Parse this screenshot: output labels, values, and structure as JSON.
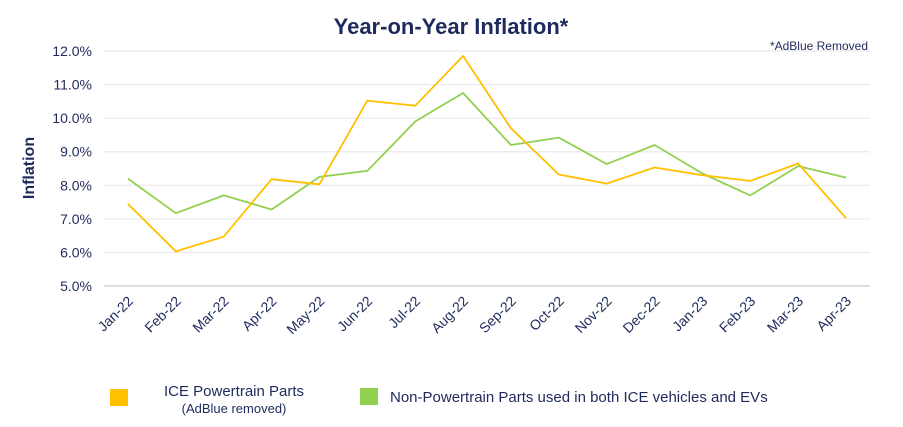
{
  "chart_data": {
    "type": "line",
    "title": "Year-on-Year Inflation*",
    "note": "*AdBlue Removed",
    "ylabel": "Inflation",
    "xlabel": "",
    "ylim": [
      5.0,
      12.0
    ],
    "yticks": [
      "5.0%",
      "6.0%",
      "7.0%",
      "8.0%",
      "9.0%",
      "10.0%",
      "11.0%",
      "12.0%"
    ],
    "grid": true,
    "legend_position": "bottom",
    "categories": [
      "Jan-22",
      "Feb-22",
      "Mar-22",
      "Apr-22",
      "May-22",
      "Jun-22",
      "Jul-22",
      "Aug-22",
      "Sep-22",
      "Oct-22",
      "Nov-22",
      "Dec-22",
      "Jan-23",
      "Feb-23",
      "Mar-23",
      "Apr-23"
    ],
    "series": [
      {
        "name": "ICE Powertrain Parts",
        "subname": "(AdBlue removed)",
        "color": "#ffc000",
        "values": [
          7.45,
          6.03,
          6.47,
          8.18,
          8.03,
          10.52,
          10.37,
          11.85,
          9.7,
          8.32,
          8.05,
          8.53,
          8.3,
          8.13,
          8.65,
          7.02
        ]
      },
      {
        "name": "Non-Powertrain Parts used in both ICE vehicles and EVs",
        "color": "#92d050",
        "values": [
          8.2,
          7.17,
          7.7,
          7.28,
          8.25,
          8.43,
          9.9,
          10.75,
          9.2,
          9.42,
          8.63,
          9.2,
          8.35,
          7.7,
          8.57,
          8.23
        ]
      }
    ]
  }
}
